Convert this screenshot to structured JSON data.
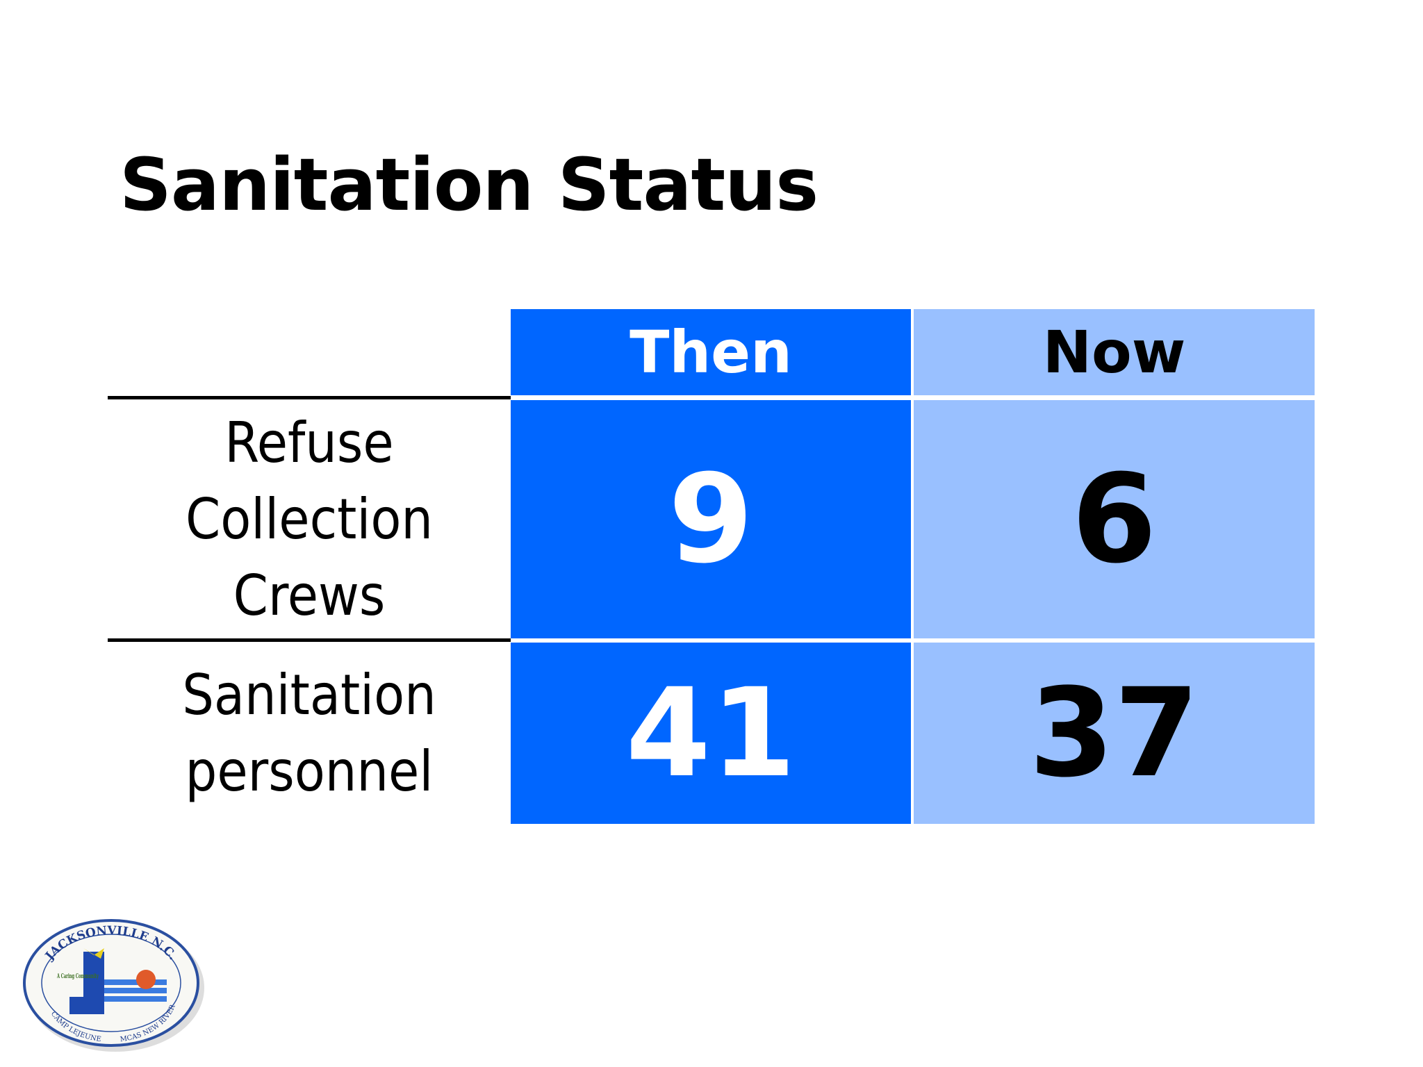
{
  "header": {
    "title": "Sanitation Status"
  },
  "table": {
    "columns": [
      "Then",
      "Now"
    ],
    "rows": [
      {
        "label": "Refuse Collection Crews",
        "values": [
          9,
          6
        ]
      },
      {
        "label": "Sanitation personnel",
        "values": [
          41,
          37
        ]
      }
    ]
  },
  "logo": {
    "top": "JACKSONVILLE N.C.",
    "motto": "A Caring Community",
    "bottom_left": "CAMP LEJEUNE",
    "bottom_right": "MCAS NEW RIVER"
  }
}
